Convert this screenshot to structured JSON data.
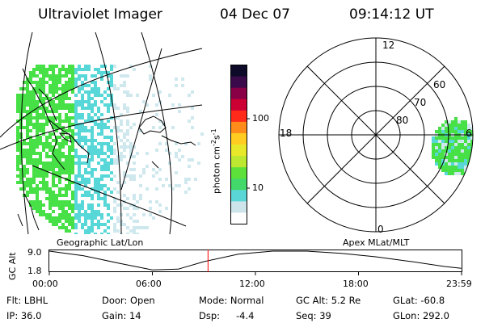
{
  "header": {
    "instrument": "Ultraviolet Imager",
    "date": "04 Dec 07",
    "time": "09:14:12 UT"
  },
  "map": {
    "caption": "Geographic Lat/Lon",
    "colors": {
      "low": "#cfe8ee",
      "mid": "#57d7d7",
      "high": "#47e047"
    }
  },
  "colorbar": {
    "unit_text": "photon cm",
    "unit_sup1": "-2",
    "unit_mid": "s",
    "unit_sup2": "-1",
    "ticks": [
      "100",
      "10"
    ],
    "colors": [
      "#ffffff",
      "#cde4ea",
      "#5bd6d6",
      "#42d96a",
      "#5ee03a",
      "#bde832",
      "#e8e82b",
      "#ffcc22",
      "#ff8c1a",
      "#ff2a1a",
      "#cc0033",
      "#8a0047",
      "#3a0a4a",
      "#0d0a2a"
    ]
  },
  "polar": {
    "caption": "Apex MLat/MLT",
    "hour_labels": {
      "top": "12",
      "left": "18",
      "right": "6",
      "bottom": "0"
    },
    "ring_labels": [
      "60",
      "70",
      "80"
    ]
  },
  "gc_plot": {
    "ylabel": "GC Alt",
    "yticks": [
      "9.0",
      "1.8"
    ],
    "xticks": [
      "00:00",
      "06:00",
      "12:00",
      "18:00",
      "23:59"
    ],
    "current_time": "09:14:12"
  },
  "chart_data": {
    "type": "line",
    "title": "",
    "xlabel": "",
    "ylabel": "GC Alt",
    "x": [
      0,
      2,
      4,
      6,
      7.5,
      9,
      11,
      13,
      15,
      17,
      19,
      21,
      23,
      23.98
    ],
    "y": [
      9.0,
      7.3,
      4.6,
      2.0,
      2.3,
      5.1,
      7.9,
      9.0,
      9.0,
      8.2,
      6.9,
      5.2,
      3.3,
      2.6
    ],
    "xlim": [
      0,
      24
    ],
    "ylim": [
      1.8,
      9.0
    ],
    "marker_hour": 9.24
  },
  "status": {
    "flt": "Flt: LBHL",
    "ip": "IP: 36.0",
    "door": "Door: Open",
    "gain": "Gain: 14",
    "mode": "Mode: Normal",
    "dsp_label": "Dsp:",
    "dsp_value": "-4.4",
    "gc_alt": "GC Alt: 5.2 Re",
    "seq": "Seq: 39",
    "glat": "GLat: -60.8",
    "glon": "GLon: 292.0"
  }
}
